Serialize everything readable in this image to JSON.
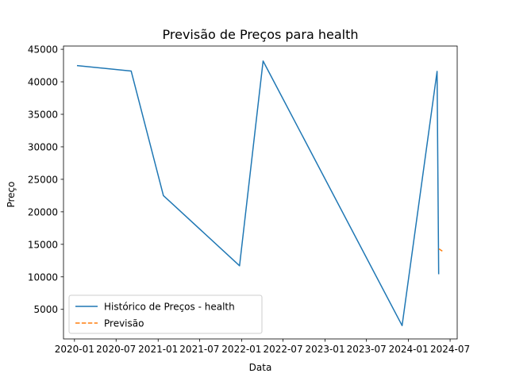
{
  "chart_data": {
    "type": "line",
    "title": "Previsão de Preços para health",
    "xlabel": "Data",
    "ylabel": "Preço",
    "xlim": [
      "2019-11-14",
      "2024-08-01"
    ],
    "ylim": [
      450,
      45500
    ],
    "x_ticks": [
      {
        "date": "2020-01-01",
        "label": "2020-01"
      },
      {
        "date": "2020-07-01",
        "label": "2020-07"
      },
      {
        "date": "2021-01-01",
        "label": "2021-01"
      },
      {
        "date": "2021-07-01",
        "label": "2021-07"
      },
      {
        "date": "2022-01-01",
        "label": "2022-01"
      },
      {
        "date": "2022-07-01",
        "label": "2022-07"
      },
      {
        "date": "2023-01-01",
        "label": "2023-01"
      },
      {
        "date": "2023-07-01",
        "label": "2023-07"
      },
      {
        "date": "2024-01-01",
        "label": "2024-01"
      },
      {
        "date": "2024-07-01",
        "label": "2024-07"
      }
    ],
    "y_ticks": [
      5000,
      10000,
      15000,
      20000,
      25000,
      30000,
      35000,
      40000,
      45000
    ],
    "grid": false,
    "legend_position": "lower-left",
    "series": [
      {
        "name": "Histórico de Preços - health",
        "color": "#1f77b4",
        "style": "solid",
        "points": [
          {
            "x": "2020-01-12",
            "y": 42500
          },
          {
            "x": "2020-09-05",
            "y": 41650
          },
          {
            "x": "2021-01-24",
            "y": 22500
          },
          {
            "x": "2021-12-23",
            "y": 11700
          },
          {
            "x": "2022-04-05",
            "y": 43200
          },
          {
            "x": "2023-12-04",
            "y": 2500
          },
          {
            "x": "2024-05-05",
            "y": 41600
          },
          {
            "x": "2024-05-12",
            "y": 10400
          }
        ]
      },
      {
        "name": "Previsão",
        "color": "#ff7f0e",
        "style": "dashed",
        "points": [
          {
            "x": "2024-05-13",
            "y": 14300
          },
          {
            "x": "2024-05-28",
            "y": 13950
          }
        ]
      }
    ]
  }
}
